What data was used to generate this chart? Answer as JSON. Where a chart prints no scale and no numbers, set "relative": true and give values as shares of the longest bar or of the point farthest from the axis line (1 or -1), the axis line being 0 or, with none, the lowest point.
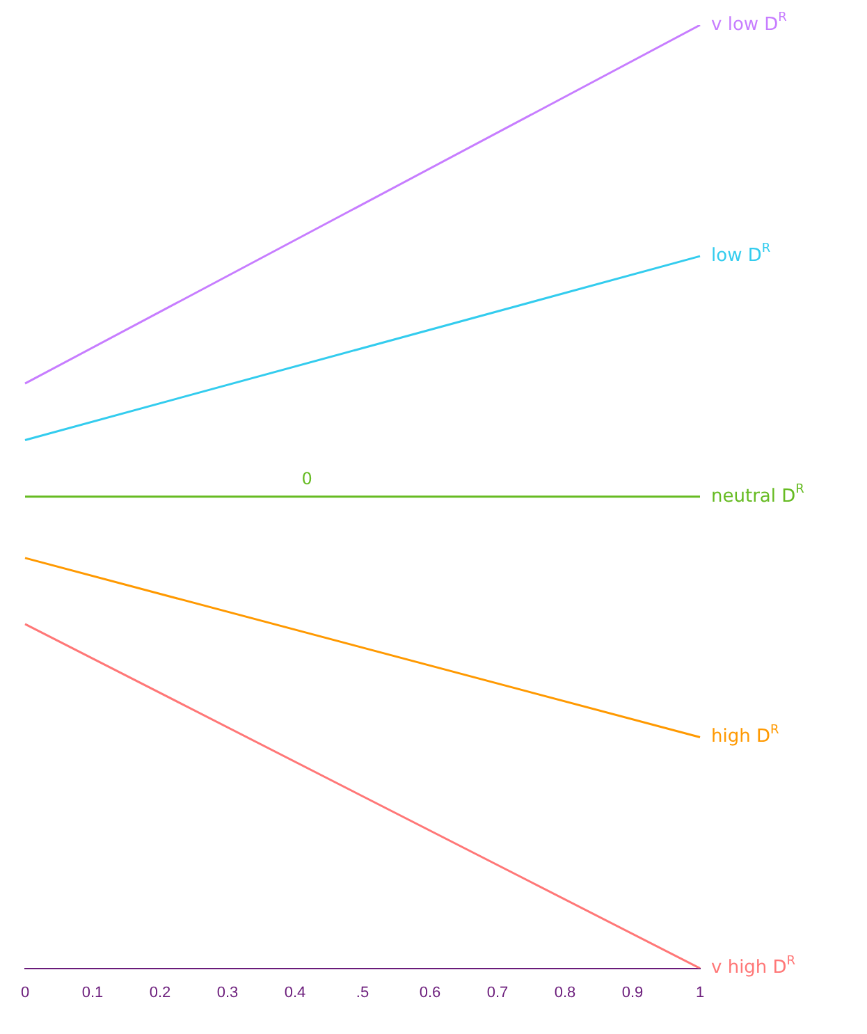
{
  "chart_data": {
    "type": "line",
    "relative": true,
    "categories": [
      "0",
      "0.1",
      "0.2",
      "0.3",
      "0.4",
      ".5",
      "0.6",
      "0.7",
      "0.8",
      "0.9",
      "1"
    ],
    "series": [
      {
        "name": "v low D$^{R}$",
        "color": "#c77dff",
        "values": [
          0.24,
          null,
          null,
          null,
          null,
          null,
          null,
          null,
          null,
          null,
          1
        ]
      },
      {
        "name": "low D$^{R}$",
        "color": "#33ccee",
        "values": [
          0.12,
          null,
          null,
          null,
          null,
          null,
          null,
          null,
          null,
          null,
          0.51
        ]
      },
      {
        "name": "neutral D$^{R}$",
        "color": "#66bb22",
        "values": [
          0,
          null,
          null,
          null,
          null,
          null,
          null,
          null,
          null,
          null,
          0
        ]
      },
      {
        "name": "high D$^{R}$",
        "color": "#ff9900",
        "values": [
          -0.13,
          null,
          null,
          null,
          null,
          null,
          null,
          null,
          null,
          null,
          -0.51
        ]
      },
      {
        "name": "v high D$^{R}$",
        "color": "#ff7777",
        "values": [
          -0.27,
          null,
          null,
          null,
          null,
          null,
          null,
          null,
          null,
          null,
          -1
        ]
      }
    ],
    "annotations": [
      "0"
    ],
    "grid": false,
    "legend": false,
    "marker": "none",
    "line_style": "solid"
  }
}
